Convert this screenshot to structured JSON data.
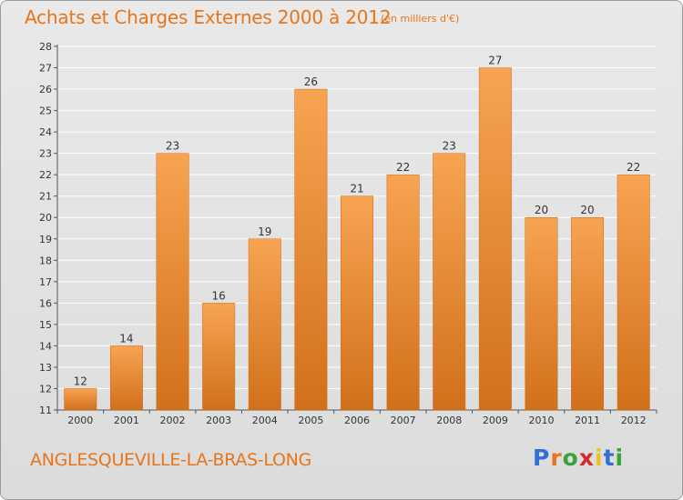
{
  "header": {
    "title": "Achats et Charges Externes 2000 à 2012",
    "unit": "(en milliers d'€)"
  },
  "footer": {
    "commune": "ANGLESQUEVILLE-LA-BRAS-LONG",
    "logo": [
      {
        "ch": "P",
        "color": "#2f6fd6"
      },
      {
        "ch": "r",
        "color": "#e8751a"
      },
      {
        "ch": "o",
        "color": "#3aa23a"
      },
      {
        "ch": "x",
        "color": "#d42a2a"
      },
      {
        "ch": "i",
        "color": "#e8c51a"
      },
      {
        "ch": "t",
        "color": "#2f6fd6"
      },
      {
        "ch": "i",
        "color": "#3aa23a"
      }
    ]
  },
  "colors": {
    "accent": "#e8751a",
    "bar_top": "#f7a452",
    "bar_bottom": "#d2701a",
    "grid": "#ffffff"
  },
  "chart_data": {
    "type": "bar",
    "categories": [
      "2000",
      "2001",
      "2002",
      "2003",
      "2004",
      "2005",
      "2006",
      "2007",
      "2008",
      "2009",
      "2010",
      "2011",
      "2012"
    ],
    "values": [
      12,
      14,
      23,
      16,
      19,
      26,
      21,
      22,
      23,
      27,
      20,
      20,
      22
    ],
    "ylim": [
      11,
      28
    ],
    "yticks": [
      11,
      12,
      13,
      14,
      15,
      16,
      17,
      18,
      19,
      20,
      21,
      22,
      23,
      24,
      25,
      26,
      27,
      28
    ],
    "grid": true,
    "legend": "none"
  }
}
